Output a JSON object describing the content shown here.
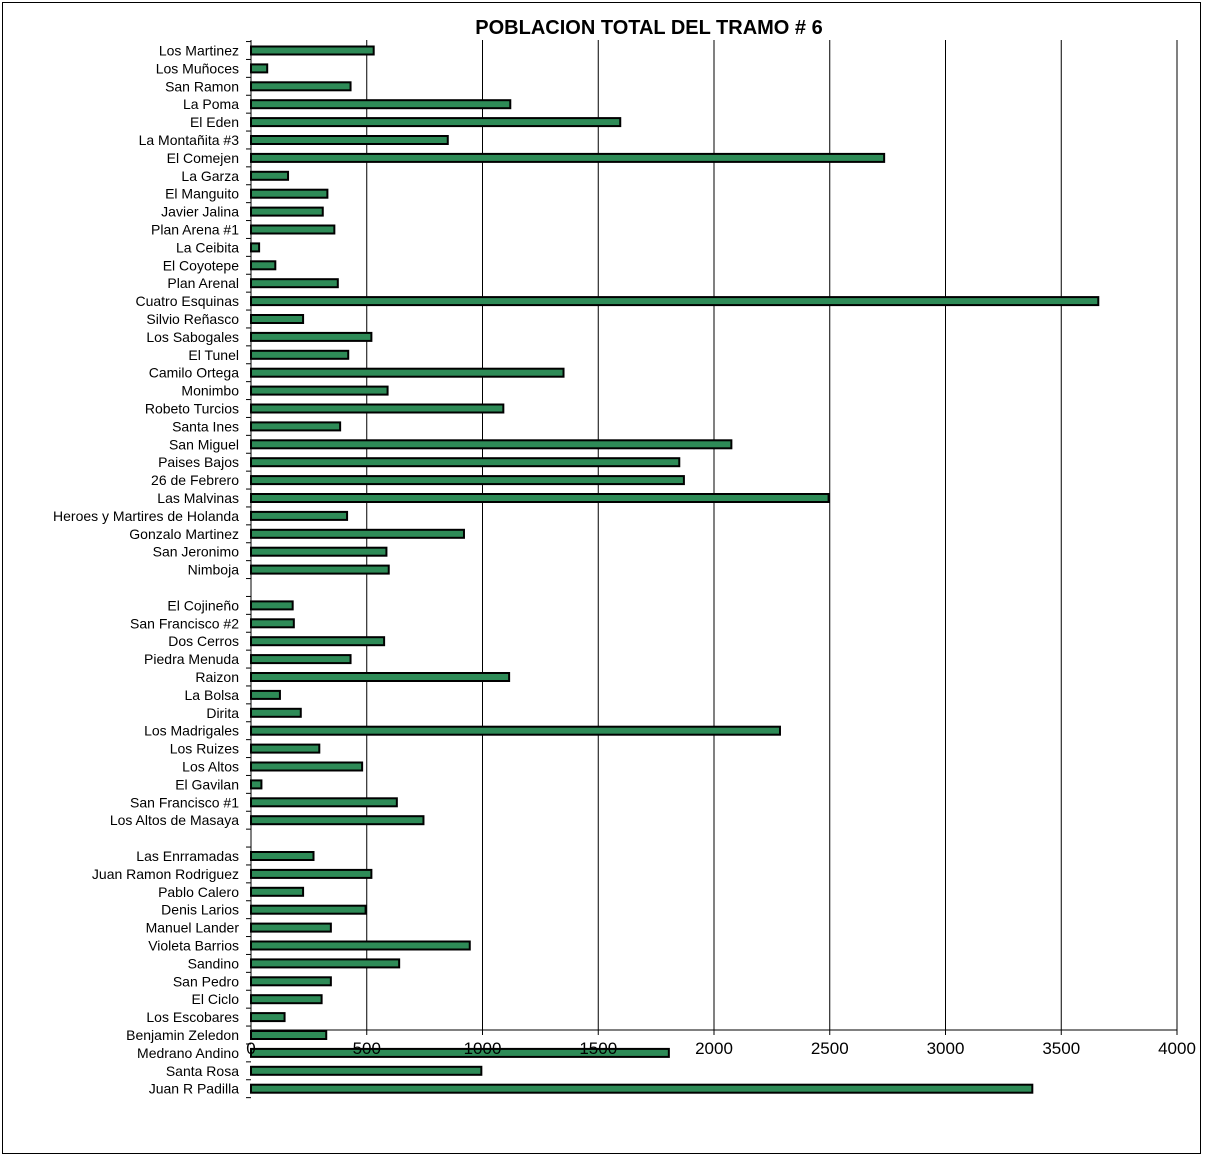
{
  "chart_data": {
    "type": "bar",
    "orientation": "horizontal",
    "title": "POBLACION TOTAL DEL TRAMO # 6",
    "xlabel": "",
    "ylabel": "",
    "xlim": [
      0,
      4000
    ],
    "x_ticks": [
      0,
      500,
      1000,
      1500,
      2000,
      2500,
      3000,
      3500,
      4000
    ],
    "grid": "vertical",
    "legend": "none",
    "bar_color": "#2e8b57",
    "categories": [
      "Los Martinez",
      "Los Muñoces",
      "San Ramon",
      "La Poma",
      "El Eden",
      "La Montañita #3",
      "El Comejen",
      "La Garza",
      "El Manguito",
      "Javier Jalina",
      "Plan Arena #1",
      "La Ceibita",
      "El Coyotepe",
      "Plan Arenal",
      "Cuatro Esquinas",
      "Silvio Reñasco",
      "Los Sabogales",
      "El Tunel",
      "Camilo Ortega",
      "Monimbo",
      "Robeto Turcios",
      "Santa Ines",
      "San Miguel",
      "Paises Bajos",
      "26 de Febrero",
      "Las Malvinas",
      "Heroes y Martires de Holanda",
      "Gonzalo Martinez",
      "San Jeronimo",
      "Nimboja",
      "",
      "El Cojineño",
      "San Francisco #2",
      "Dos Cerros",
      "Piedra Menuda",
      "Raizon",
      "La Bolsa",
      "Dirita",
      "Los Madrigales",
      "Los Ruizes",
      "Los Altos",
      "El Gavilan",
      "San Francisco #1",
      "Los Altos de Masaya",
      "",
      "Las Enrramadas",
      "Juan Ramon Rodriguez",
      "Pablo Calero",
      "Denis Larios",
      "Manuel Lander",
      "Violeta Barrios",
      "Sandino",
      "San Pedro",
      "El Ciclo",
      "Los Escobares",
      "Benjamin Zeledon",
      "Medrano Andino",
      "Santa Rosa",
      "Juan R Padilla"
    ],
    "values": [
      530,
      70,
      430,
      1120,
      1595,
      850,
      2735,
      160,
      330,
      310,
      360,
      35,
      105,
      375,
      3660,
      225,
      520,
      420,
      1350,
      590,
      1090,
      385,
      2075,
      1850,
      1870,
      2495,
      415,
      920,
      585,
      595,
      null,
      180,
      185,
      575,
      430,
      1115,
      125,
      215,
      2285,
      295,
      480,
      45,
      630,
      745,
      null,
      270,
      520,
      225,
      495,
      345,
      945,
      640,
      345,
      305,
      145,
      325,
      1805,
      995,
      3375
    ]
  }
}
